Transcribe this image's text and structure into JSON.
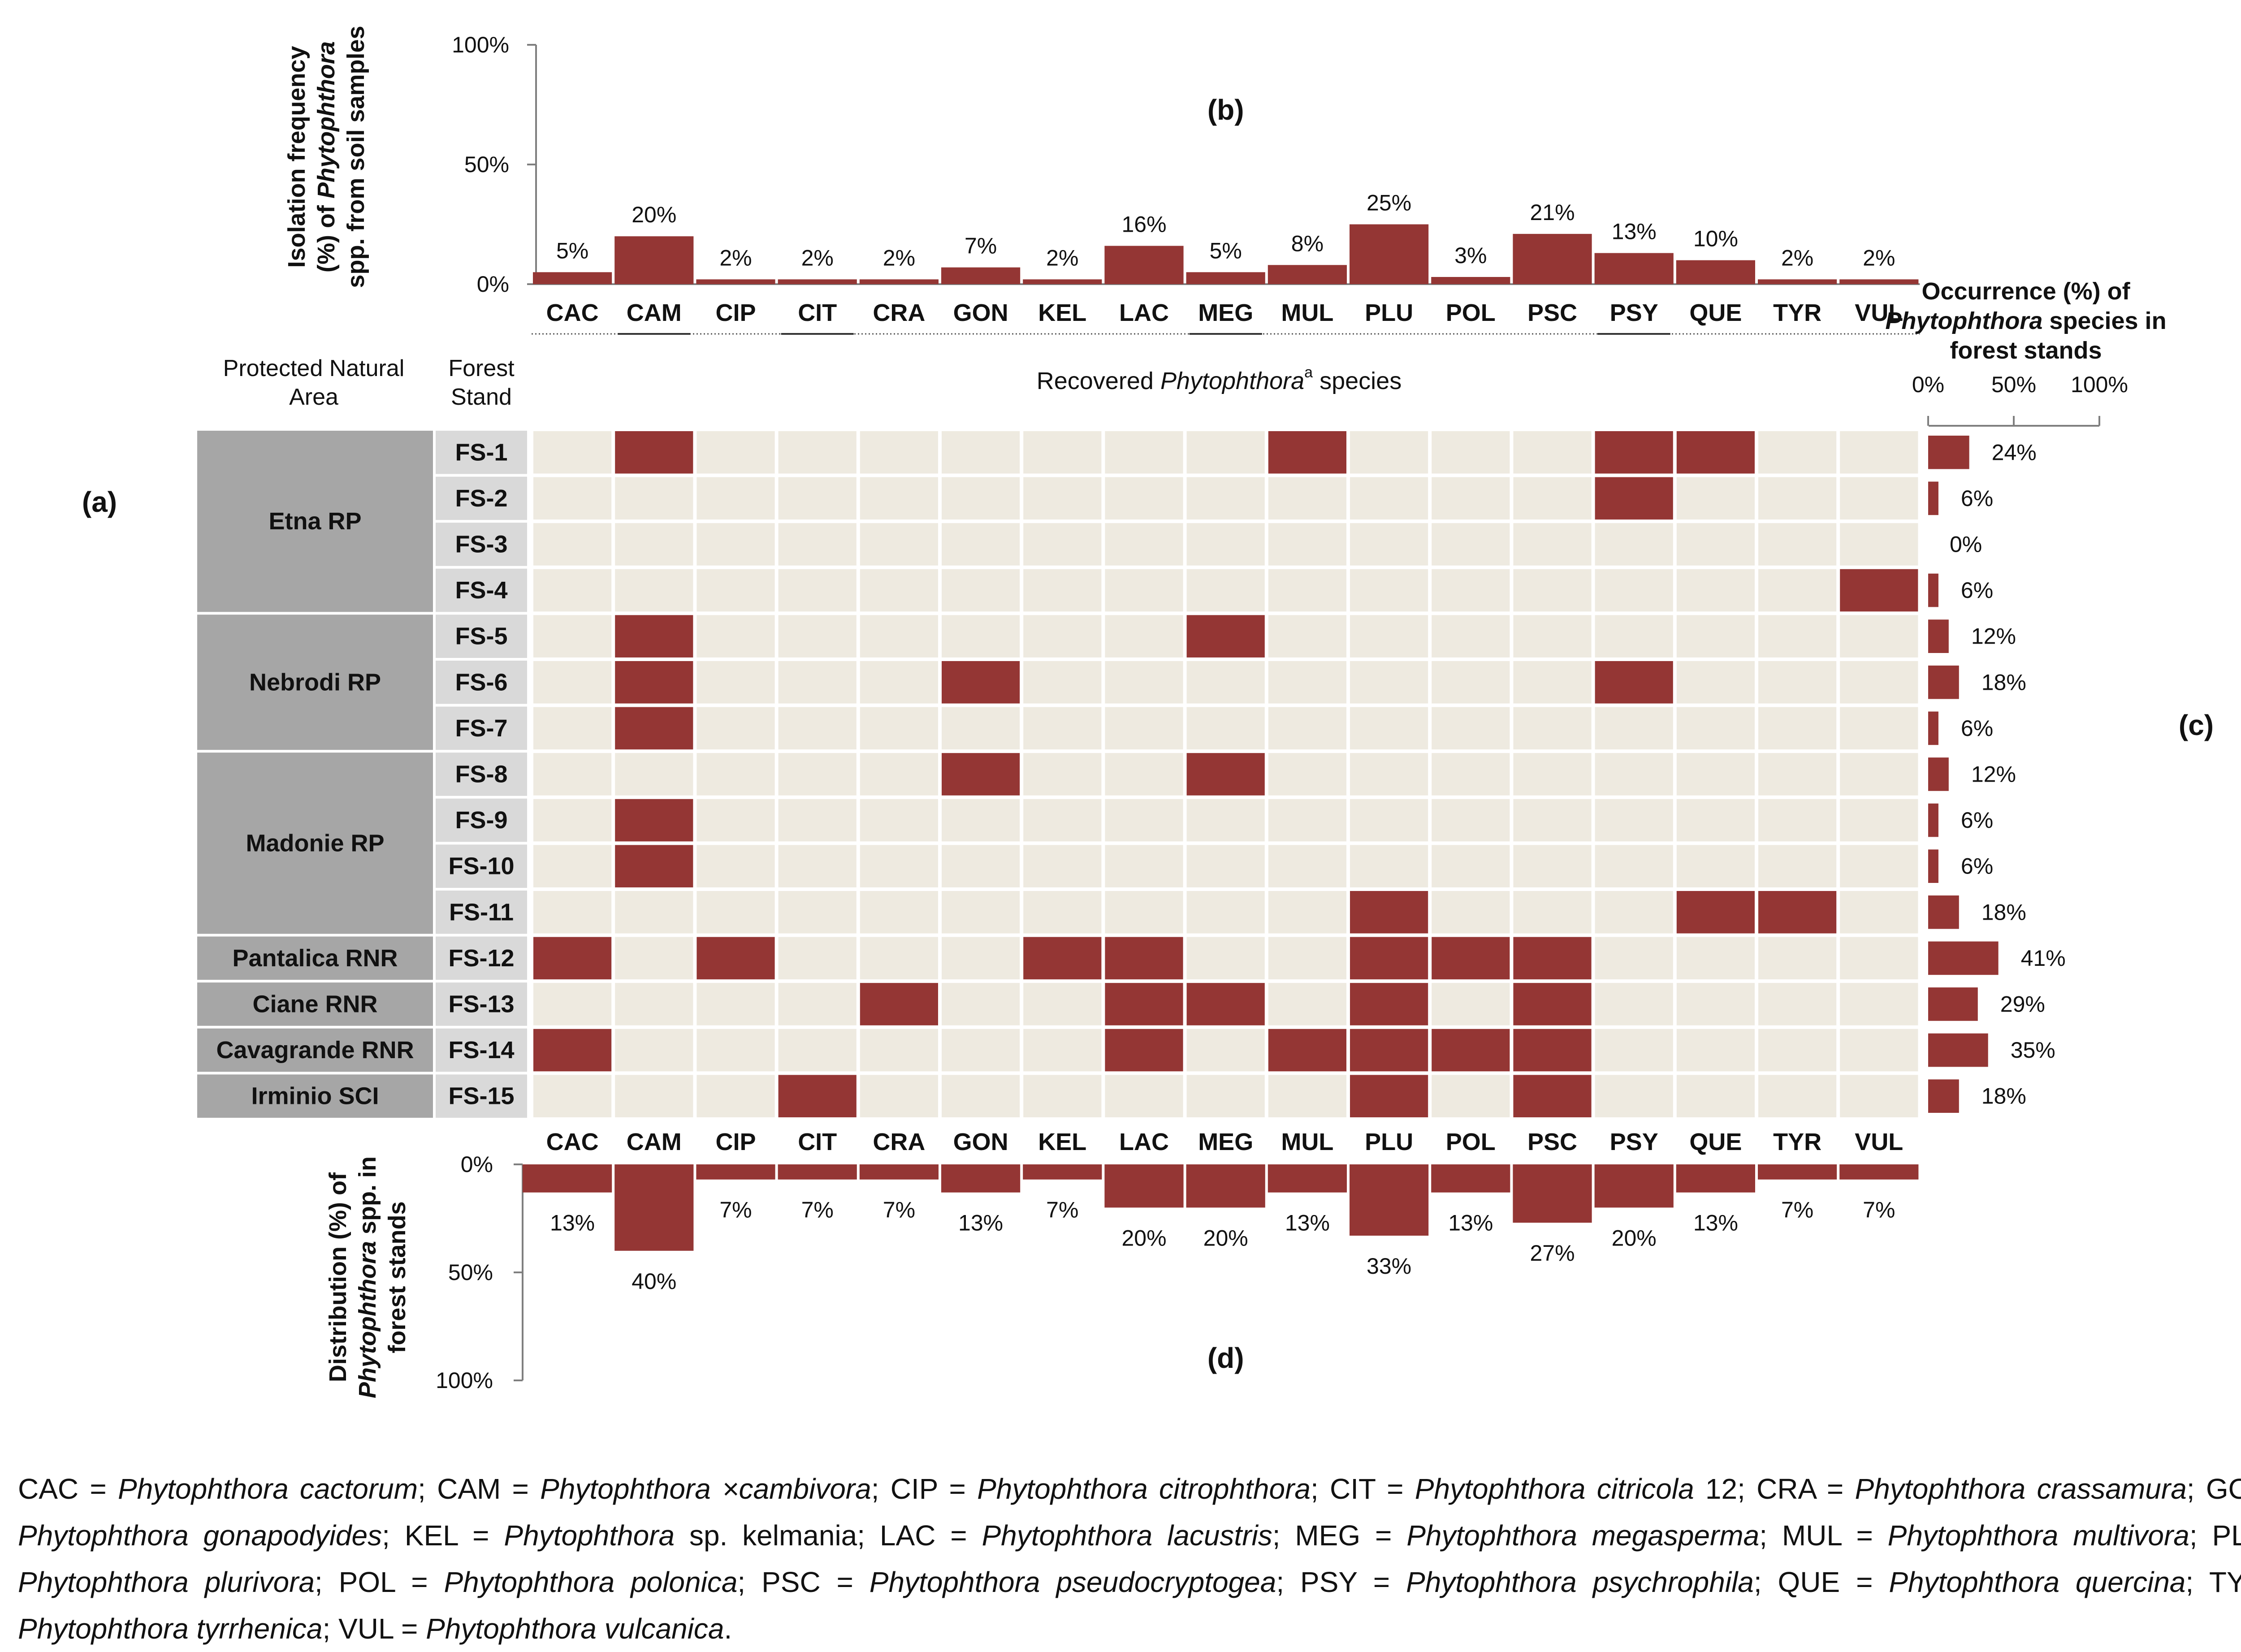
{
  "chart_data": {
    "type": "heatmap",
    "species": [
      "CAC",
      "CAM",
      "CIP",
      "CIT",
      "CRA",
      "GON",
      "KEL",
      "LAC",
      "MEG",
      "MUL",
      "PLU",
      "POL",
      "PSC",
      "PSY",
      "QUE",
      "TYR",
      "VUL"
    ],
    "areas": [
      {
        "name": "Etna RP",
        "stands": [
          "FS-1",
          "FS-2",
          "FS-3",
          "FS-4"
        ]
      },
      {
        "name": "Nebrodi RP",
        "stands": [
          "FS-5",
          "FS-6",
          "FS-7"
        ]
      },
      {
        "name": "Madonie RP",
        "stands": [
          "FS-8",
          "FS-9",
          "FS-10",
          "FS-11"
        ]
      },
      {
        "name": "Pantalica RNR",
        "stands": [
          "FS-12"
        ]
      },
      {
        "name": "Ciane RNR",
        "stands": [
          "FS-13"
        ]
      },
      {
        "name": "Cavagrande RNR",
        "stands": [
          "FS-14"
        ]
      },
      {
        "name": "Irminio SCI",
        "stands": [
          "FS-15"
        ]
      }
    ],
    "stands": [
      "FS-1",
      "FS-2",
      "FS-3",
      "FS-4",
      "FS-5",
      "FS-6",
      "FS-7",
      "FS-8",
      "FS-9",
      "FS-10",
      "FS-11",
      "FS-12",
      "FS-13",
      "FS-14",
      "FS-15"
    ],
    "presence": [
      [
        0,
        1,
        0,
        0,
        0,
        0,
        0,
        0,
        0,
        1,
        0,
        0,
        0,
        1,
        1,
        0,
        0
      ],
      [
        0,
        0,
        0,
        0,
        0,
        0,
        0,
        0,
        0,
        0,
        0,
        0,
        0,
        1,
        0,
        0,
        0
      ],
      [
        0,
        0,
        0,
        0,
        0,
        0,
        0,
        0,
        0,
        0,
        0,
        0,
        0,
        0,
        0,
        0,
        0
      ],
      [
        0,
        0,
        0,
        0,
        0,
        0,
        0,
        0,
        0,
        0,
        0,
        0,
        0,
        0,
        0,
        0,
        1
      ],
      [
        0,
        1,
        0,
        0,
        0,
        0,
        0,
        0,
        1,
        0,
        0,
        0,
        0,
        0,
        0,
        0,
        0
      ],
      [
        0,
        1,
        0,
        0,
        0,
        1,
        0,
        0,
        0,
        0,
        0,
        0,
        0,
        1,
        0,
        0,
        0
      ],
      [
        0,
        1,
        0,
        0,
        0,
        0,
        0,
        0,
        0,
        0,
        0,
        0,
        0,
        0,
        0,
        0,
        0
      ],
      [
        0,
        0,
        0,
        0,
        0,
        1,
        0,
        0,
        1,
        0,
        0,
        0,
        0,
        0,
        0,
        0,
        0
      ],
      [
        0,
        1,
        0,
        0,
        0,
        0,
        0,
        0,
        0,
        0,
        0,
        0,
        0,
        0,
        0,
        0,
        0
      ],
      [
        0,
        1,
        0,
        0,
        0,
        0,
        0,
        0,
        0,
        0,
        0,
        0,
        0,
        0,
        0,
        0,
        0
      ],
      [
        0,
        0,
        0,
        0,
        0,
        0,
        0,
        0,
        0,
        0,
        1,
        0,
        0,
        0,
        1,
        1,
        0
      ],
      [
        1,
        0,
        1,
        0,
        0,
        0,
        1,
        1,
        0,
        0,
        1,
        1,
        1,
        0,
        0,
        0,
        0
      ],
      [
        0,
        0,
        0,
        0,
        1,
        0,
        0,
        1,
        1,
        0,
        1,
        0,
        1,
        0,
        0,
        0,
        0
      ],
      [
        1,
        0,
        0,
        0,
        0,
        0,
        0,
        1,
        0,
        1,
        1,
        1,
        1,
        0,
        0,
        0,
        0
      ],
      [
        0,
        0,
        0,
        1,
        0,
        0,
        0,
        0,
        0,
        0,
        1,
        0,
        1,
        0,
        0,
        0,
        0
      ]
    ],
    "isolation_frequency": [
      5,
      20,
      2,
      2,
      2,
      7,
      2,
      16,
      5,
      8,
      25,
      3,
      21,
      13,
      10,
      2,
      2
    ],
    "isolation_labels": [
      "5%",
      "20%",
      "2%",
      "2%",
      "2%",
      "7%",
      "2%",
      "16%",
      "5%",
      "8%",
      "25%",
      "3%",
      "21%",
      "13%",
      "10%",
      "2%",
      "2%"
    ],
    "occurrence": [
      24,
      6,
      0,
      6,
      12,
      18,
      6,
      12,
      6,
      6,
      18,
      41,
      29,
      35,
      18
    ],
    "occurrence_labels": [
      "24%",
      "6%",
      "0%",
      "6%",
      "12%",
      "18%",
      "6%",
      "12%",
      "6%",
      "6%",
      "18%",
      "41%",
      "29%",
      "35%",
      "18%"
    ],
    "distribution": [
      13,
      40,
      7,
      7,
      7,
      13,
      7,
      20,
      20,
      13,
      33,
      13,
      27,
      20,
      13,
      7,
      7
    ],
    "distribution_labels": [
      "13%",
      "40%",
      "7%",
      "7%",
      "7%",
      "13%",
      "7%",
      "20%",
      "20%",
      "13%",
      "33%",
      "13%",
      "27%",
      "20%",
      "13%",
      "7%",
      "7%"
    ],
    "ylim": [
      0,
      100
    ],
    "ticks": [
      "0%",
      "50%",
      "100%"
    ],
    "panel_labels": {
      "a": "(a)",
      "b": "(b)",
      "c": "(c)",
      "d": "(d)"
    },
    "header_area": [
      "Protected Natural",
      "Area"
    ],
    "header_stand": [
      "Forest",
      "Stand"
    ],
    "header_species_main": "Recovered ",
    "header_species_genus": "Phytophthora",
    "header_species_sup": "a",
    "header_species_tail": " species",
    "ylabel_b": [
      [
        "Isolation frequency",
        ""
      ],
      [
        "(%) of ",
        "Phytophthora"
      ],
      [
        "spp. from soil samples",
        ""
      ]
    ],
    "ylabel_c": [
      [
        "Occurrence (%) of",
        ""
      ],
      [
        "",
        "Phytophthora",
        " species in"
      ],
      [
        "forest stands",
        ""
      ]
    ],
    "ylabel_d": [
      [
        "Distribution (%) of",
        ""
      ],
      [
        "",
        "Phytophthora",
        " spp. in"
      ],
      [
        "forest stands",
        ""
      ]
    ],
    "colors": {
      "present": "#943634",
      "absent": "#eeeae0",
      "area": "#a6a6a6",
      "stand": "#d9d9d9",
      "axis": "#7f7f7f",
      "grid": "#ffffff"
    }
  },
  "footnote": [
    {
      "abbr": "CAC",
      "genus": "Phytophthora",
      "name": " cactorum",
      "extra": ""
    },
    {
      "abbr": "CAM",
      "genus": "Phytophthora",
      "name": " ×cambivora",
      "extra": ""
    },
    {
      "abbr": "CIP",
      "genus": "Phytophthora",
      "name": " citrophthora",
      "extra": ""
    },
    {
      "abbr": "CIT",
      "genus": "Phytophthora",
      "name": " citricola",
      "extra": " 12"
    },
    {
      "abbr": "CRA",
      "genus": "Phytophthora",
      "name": " crassamura",
      "extra": ""
    },
    {
      "abbr": "GON",
      "genus": "Phytophthora",
      "name": " gonapodyides",
      "extra": ""
    },
    {
      "abbr": "KEL",
      "genus": "Phytophthora",
      "name": "",
      "extra": " sp. kelmania"
    },
    {
      "abbr": "LAC",
      "genus": "Phytophthora",
      "name": " lacustris",
      "extra": ""
    },
    {
      "abbr": "MEG",
      "genus": "Phytophthora",
      "name": " megasperma",
      "extra": ""
    },
    {
      "abbr": "MUL",
      "genus": "Phytophthora",
      "name": " multivora",
      "extra": ""
    },
    {
      "abbr": "PLU",
      "genus": "Phytophthora",
      "name": " plurivora",
      "extra": ""
    },
    {
      "abbr": "POL",
      "genus": "Phytophthora",
      "name": " polonica",
      "extra": ""
    },
    {
      "abbr": "PSC",
      "genus": "Phytophthora",
      "name": " pseudocryptogea",
      "extra": ""
    },
    {
      "abbr": "PSY",
      "genus": "Phytophthora",
      "name": " psychrophila",
      "extra": ""
    },
    {
      "abbr": "QUE",
      "genus": "Phytophthora",
      "name": " quercina",
      "extra": ""
    },
    {
      "abbr": "TYR",
      "genus": "Phytophthora",
      "name": " tyrrhenica",
      "extra": ""
    },
    {
      "abbr": "VUL",
      "genus": "Phytophthora",
      "name": " vulcanica",
      "extra": ""
    }
  ]
}
